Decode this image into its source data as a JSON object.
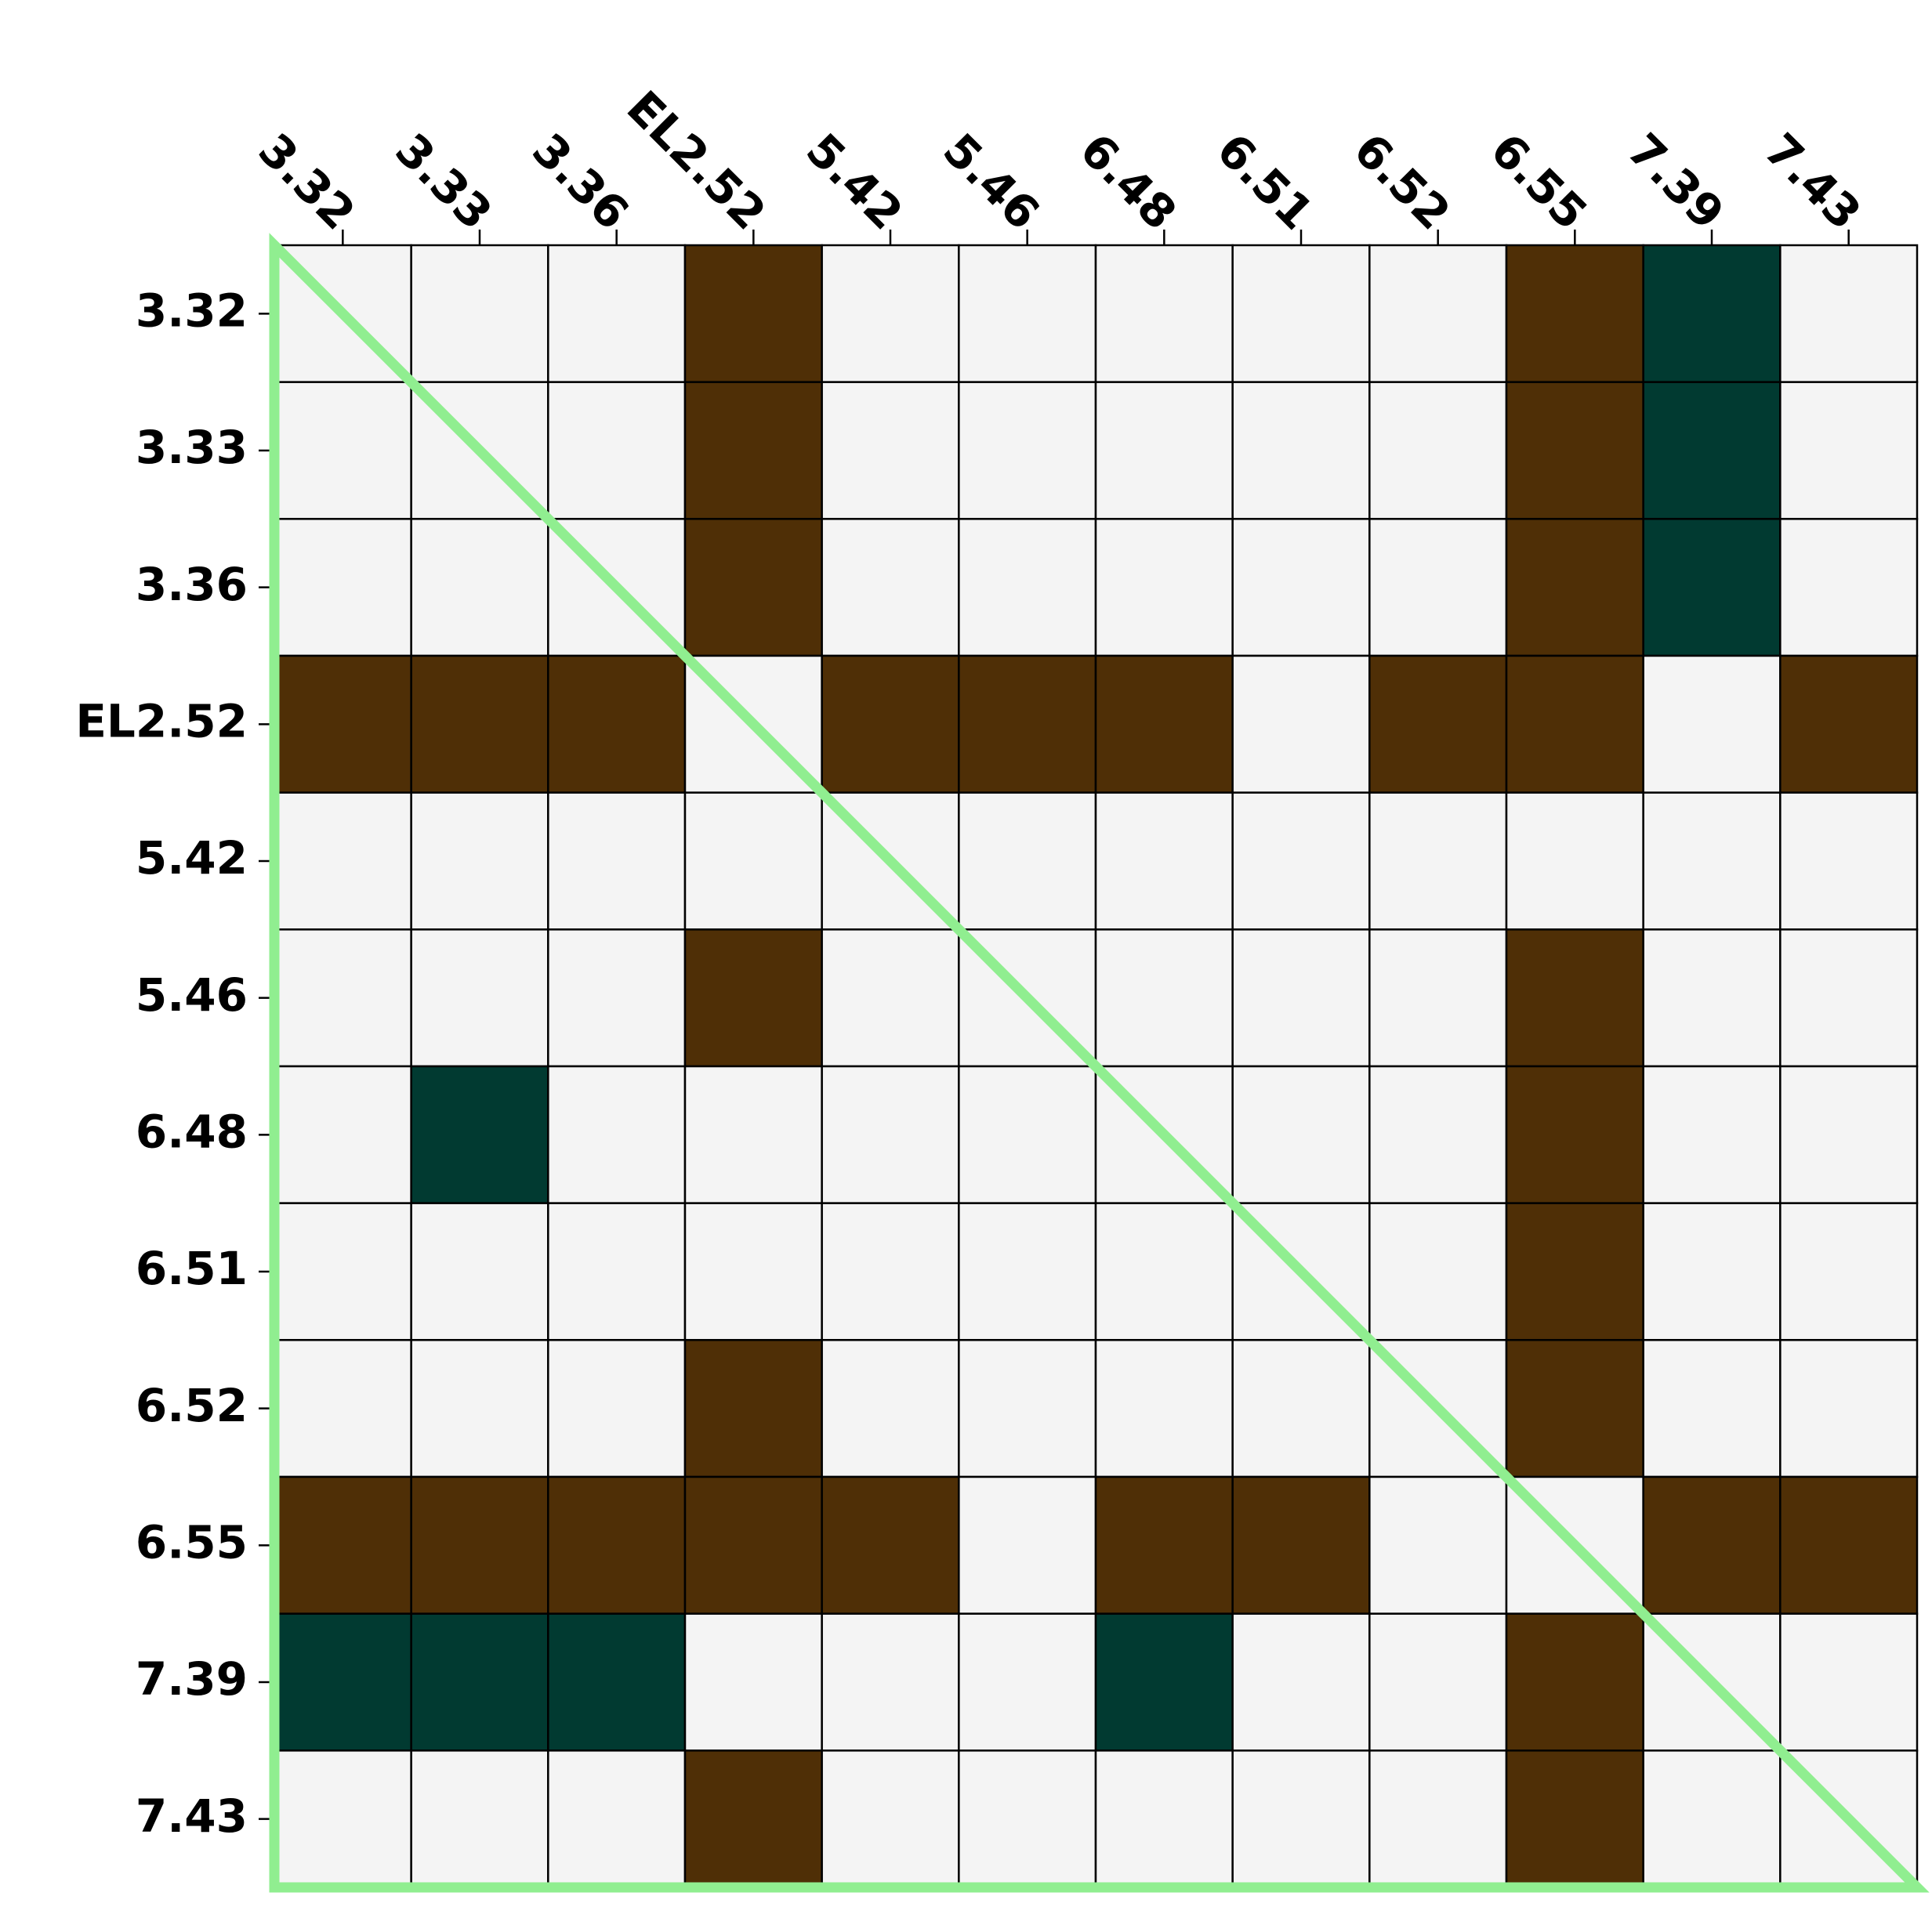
{
  "chart_data": {
    "type": "heatmap",
    "title": "",
    "xlabel": "",
    "ylabel": "",
    "x_labels": [
      "3.32",
      "3.33",
      "3.36",
      "EL2.52",
      "5.42",
      "5.46",
      "6.48",
      "6.51",
      "6.52",
      "6.55",
      "7.39",
      "7.43"
    ],
    "y_labels": [
      "3.32",
      "3.33",
      "3.36",
      "EL2.52",
      "5.42",
      "5.46",
      "6.48",
      "6.51",
      "6.52",
      "6.55",
      "7.39",
      "7.43"
    ],
    "x_tick_position": "top",
    "grid": true,
    "category_colors": {
      "0": "#f4f4f4",
      "1": "#4f2f06",
      "2": "#013a31"
    },
    "highlight_color": "#90ee90",
    "matrix": [
      [
        0,
        0,
        0,
        1,
        0,
        0,
        0,
        0,
        0,
        1,
        2,
        0
      ],
      [
        0,
        0,
        0,
        1,
        0,
        0,
        0,
        0,
        0,
        1,
        2,
        0
      ],
      [
        0,
        0,
        0,
        1,
        0,
        0,
        0,
        0,
        0,
        1,
        2,
        0
      ],
      [
        1,
        1,
        1,
        0,
        1,
        1,
        1,
        0,
        1,
        1,
        0,
        1
      ],
      [
        0,
        0,
        0,
        0,
        0,
        0,
        0,
        0,
        0,
        0,
        0,
        0
      ],
      [
        0,
        0,
        0,
        1,
        0,
        0,
        0,
        0,
        0,
        1,
        0,
        0
      ],
      [
        0,
        2,
        0,
        0,
        0,
        0,
        0,
        0,
        0,
        1,
        0,
        0
      ],
      [
        0,
        0,
        0,
        0,
        0,
        0,
        0,
        0,
        0,
        1,
        0,
        0
      ],
      [
        0,
        0,
        0,
        1,
        0,
        0,
        0,
        0,
        0,
        1,
        0,
        0
      ],
      [
        1,
        1,
        1,
        1,
        1,
        0,
        1,
        1,
        0,
        0,
        1,
        1
      ],
      [
        2,
        2,
        2,
        0,
        0,
        0,
        2,
        0,
        0,
        1,
        0,
        0
      ],
      [
        0,
        0,
        0,
        1,
        0,
        0,
        0,
        0,
        0,
        1,
        0,
        0
      ]
    ]
  }
}
